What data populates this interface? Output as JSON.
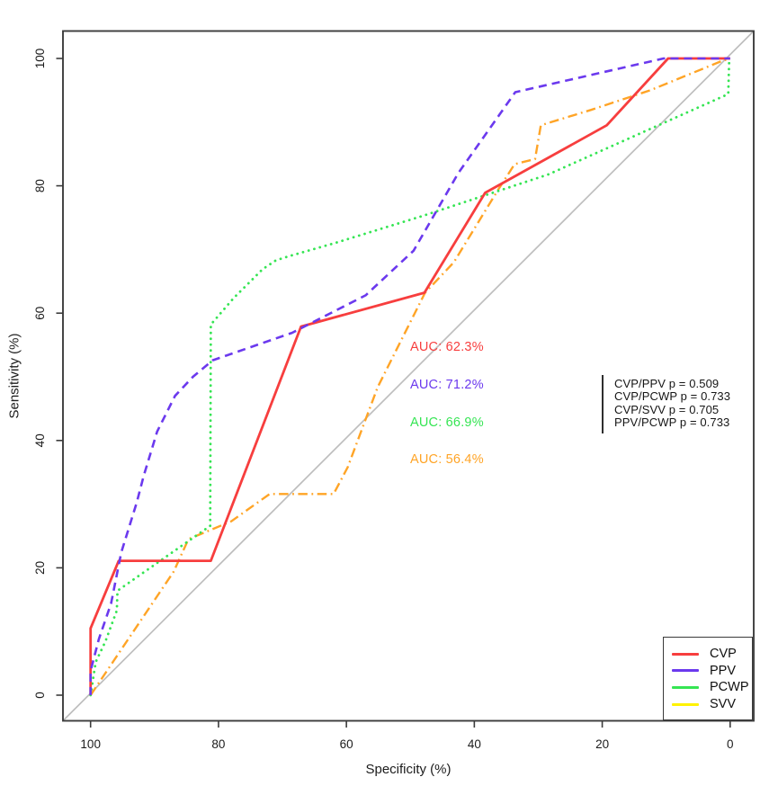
{
  "figure": {
    "background": "#FFFFFF",
    "axis_color": "#3C3C3C",
    "text_color": "#1C1C1C",
    "diagonal_color": "#BEBEBE"
  },
  "chart_data": {
    "type": "line",
    "subtype": "roc-curves",
    "title": "",
    "xlabel": "Specificity (%)",
    "ylabel": "Sensitivity (%)",
    "xlim": [
      100,
      0
    ],
    "ylim": [
      0,
      100
    ],
    "x_ticks": [
      100,
      80,
      60,
      40,
      20,
      0
    ],
    "y_ticks": [
      0,
      20,
      40,
      60,
      80,
      100
    ],
    "grid": false,
    "legend_position": "bottomright",
    "reference_diagonal": true,
    "series": [
      {
        "name": "CVP",
        "color": "#F73E3E",
        "style": "solid",
        "auc": "62.3%",
        "points": [
          [
            100,
            0
          ],
          [
            100,
            10.5
          ],
          [
            95.6,
            21.1
          ],
          [
            81.2,
            21.1
          ],
          [
            67.1,
            57.9
          ],
          [
            47.8,
            63.2
          ],
          [
            38.3,
            78.9
          ],
          [
            19.3,
            89.5
          ],
          [
            9.7,
            100
          ],
          [
            0,
            100
          ]
        ]
      },
      {
        "name": "PPV",
        "color": "#6B39EE",
        "style": "dashed",
        "auc": "71.2%",
        "points": [
          [
            100,
            0
          ],
          [
            100,
            3.8
          ],
          [
            98.7,
            8.8
          ],
          [
            96.8,
            14.4
          ],
          [
            95.2,
            22.4
          ],
          [
            92.8,
            30.2
          ],
          [
            91.7,
            34.4
          ],
          [
            89.6,
            41.4
          ],
          [
            86.8,
            47
          ],
          [
            84,
            50
          ],
          [
            80.9,
            52.6
          ],
          [
            68.5,
            56.9
          ],
          [
            57,
            62.8
          ],
          [
            49.5,
            69.8
          ],
          [
            42.5,
            82
          ],
          [
            33.6,
            94.7
          ],
          [
            10.4,
            100
          ],
          [
            0,
            100
          ]
        ]
      },
      {
        "name": "PCWP",
        "color": "#35E553",
        "style": "dotted",
        "auc": "66.9%",
        "points": [
          [
            100,
            0
          ],
          [
            99.2,
            5.2
          ],
          [
            97.7,
            8.4
          ],
          [
            95.9,
            13.3
          ],
          [
            95.8,
            16.4
          ],
          [
            81.3,
            26.6
          ],
          [
            81.2,
            58.2
          ],
          [
            77.6,
            62.4
          ],
          [
            75.2,
            64.8
          ],
          [
            73.1,
            66.9
          ],
          [
            71,
            68.3
          ],
          [
            68.8,
            69
          ],
          [
            66,
            69.8
          ],
          [
            61.5,
            71.1
          ],
          [
            48,
            75.3
          ],
          [
            28.4,
            81.8
          ],
          [
            0.3,
            94.4
          ],
          [
            0.15,
            99.6
          ],
          [
            0,
            100
          ]
        ]
      },
      {
        "name": "SVV",
        "color": "#FFA426",
        "legend_color": "#FFF200",
        "style": "dashdot",
        "auc": "56.4%",
        "points": [
          [
            100,
            0
          ],
          [
            87,
            19.4
          ],
          [
            84.7,
            24.5
          ],
          [
            78,
            27.3
          ],
          [
            72,
            31.6
          ],
          [
            62,
            31.6
          ],
          [
            59.8,
            35.8
          ],
          [
            55.1,
            48.4
          ],
          [
            47.7,
            63.2
          ],
          [
            43.2,
            68
          ],
          [
            36.4,
            79.2
          ],
          [
            33.7,
            83.4
          ],
          [
            30.5,
            84.2
          ],
          [
            29.6,
            89.5
          ],
          [
            21.8,
            91.9
          ],
          [
            12.5,
            95
          ],
          [
            1.3,
            99.6
          ],
          [
            0,
            100
          ]
        ]
      }
    ]
  },
  "annotations": {
    "auc_labels": [
      {
        "text": "AUC: 62.3%",
        "color": "#F73E3E"
      },
      {
        "text": "AUC: 71.2%",
        "color": "#6B39EE"
      },
      {
        "text": "AUC: 66.9%",
        "color": "#35E553"
      },
      {
        "text": "AUC: 56.4%",
        "color": "#FFA426"
      }
    ],
    "p_values": [
      "CVP/PPV p = 0.509",
      "CVP/PCWP p = 0.733",
      "CVP/SVV p = 0.705",
      "PPV/PCWP p = 0.733"
    ]
  },
  "legend": {
    "items": [
      {
        "label": "CVP",
        "color": "#F73E3E"
      },
      {
        "label": "PPV",
        "color": "#6B39EE"
      },
      {
        "label": "PCWP",
        "color": "#35E553"
      },
      {
        "label": "SVV",
        "color": "#FFF200"
      }
    ]
  }
}
